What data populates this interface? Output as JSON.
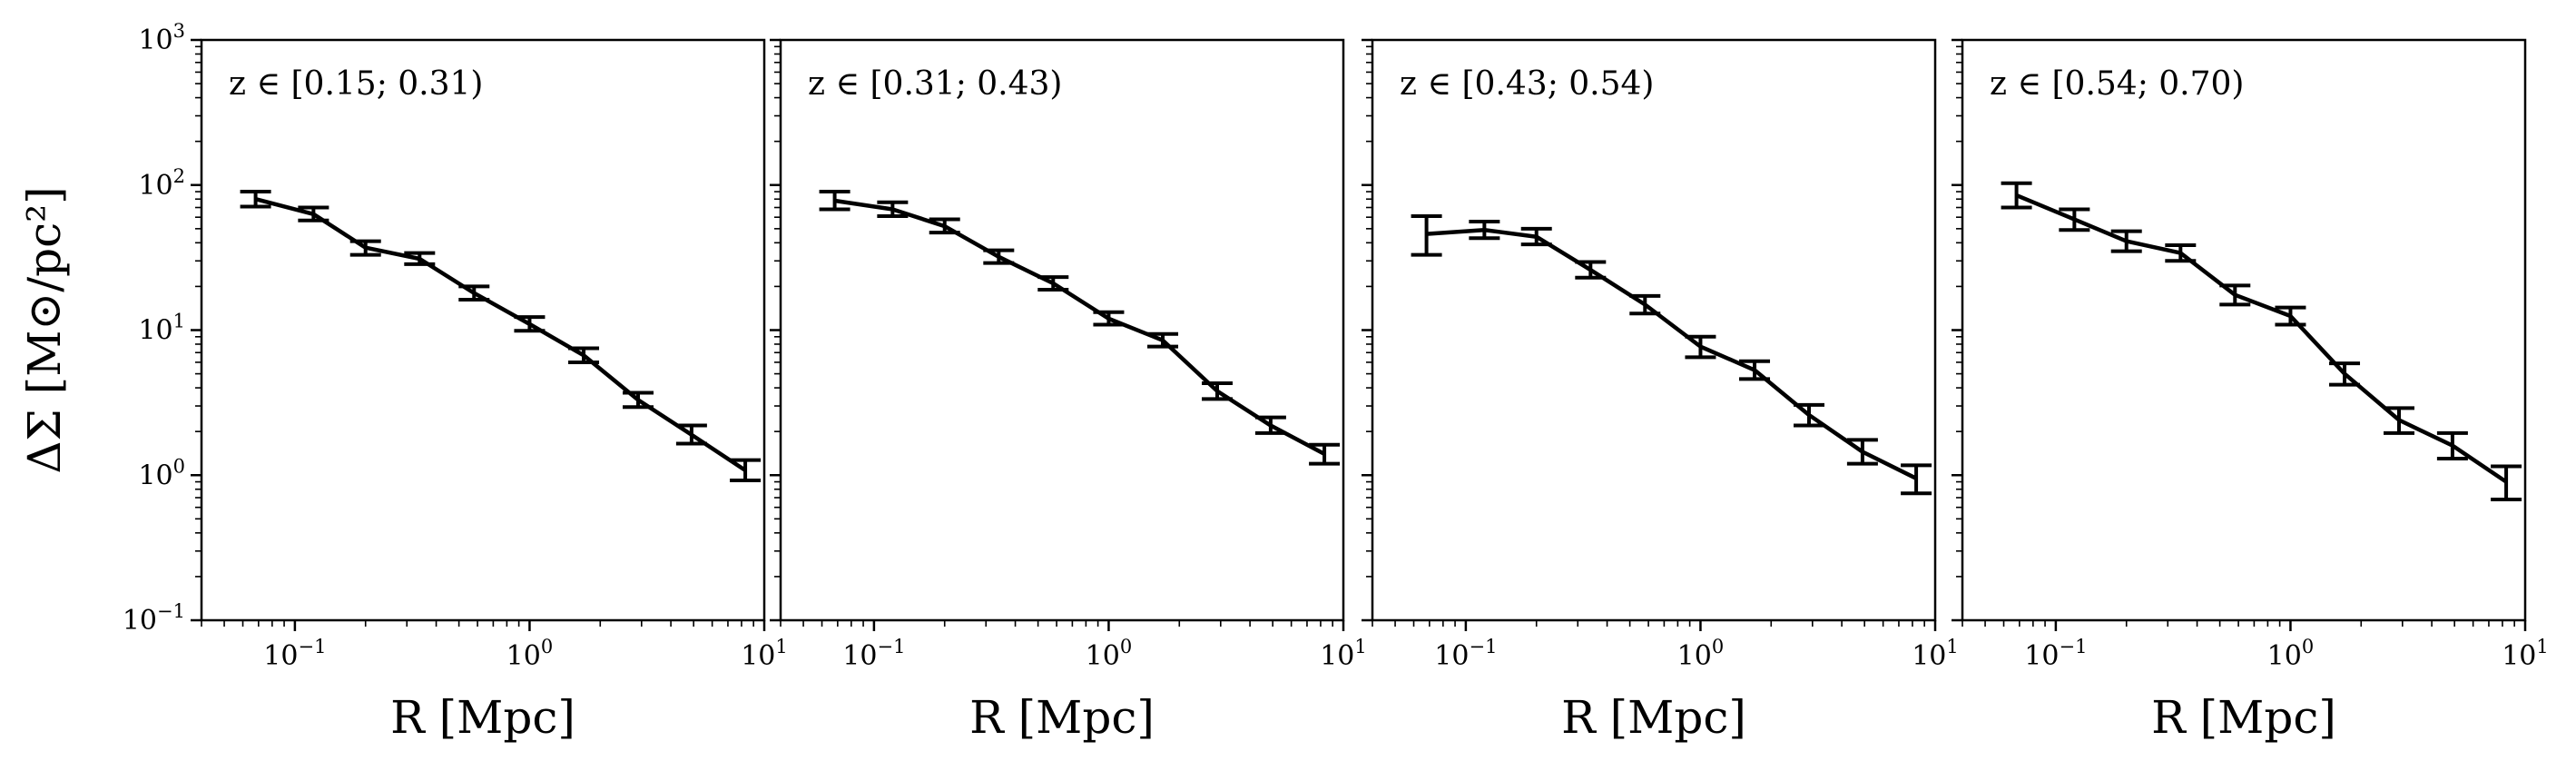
{
  "chart_data": [
    {
      "type": "line",
      "annotation": "z ∈ [0.15; 0.31)",
      "xlabel": "R [Mpc]",
      "ylabel": "ΔΣ [M⊙/pc²]",
      "xscale": "log",
      "yscale": "log",
      "xlim": [
        0.04,
        10
      ],
      "ylim": [
        0.1,
        1000
      ],
      "x": [
        0.068,
        0.12,
        0.2,
        0.34,
        0.58,
        1.0,
        1.7,
        2.9,
        4.9,
        8.3
      ],
      "y": [
        80,
        63,
        37,
        31,
        18,
        11,
        6.7,
        3.3,
        1.9,
        1.08
      ],
      "err_low": [
        9,
        6,
        4,
        2.5,
        1.8,
        1.1,
        0.7,
        0.35,
        0.25,
        0.16
      ],
      "err_high": [
        10,
        7,
        4,
        3,
        2,
        1.3,
        0.8,
        0.4,
        0.3,
        0.19
      ]
    },
    {
      "type": "line",
      "annotation": "z ∈ [0.31; 0.43)",
      "xlabel": "R [Mpc]",
      "ylabel": "",
      "xscale": "log",
      "yscale": "log",
      "xlim": [
        0.04,
        10
      ],
      "ylim": [
        0.1,
        1000
      ],
      "x": [
        0.068,
        0.12,
        0.2,
        0.34,
        0.58,
        1.0,
        1.7,
        2.9,
        4.9,
        8.3
      ],
      "y": [
        78,
        68,
        52,
        32,
        21,
        12,
        8.5,
        3.8,
        2.2,
        1.4
      ],
      "err_low": [
        10,
        7,
        5,
        3,
        2,
        1.1,
        0.8,
        0.45,
        0.25,
        0.2
      ],
      "err_high": [
        12,
        8,
        6,
        3.5,
        2.2,
        1.3,
        0.9,
        0.5,
        0.3,
        0.22
      ]
    },
    {
      "type": "line",
      "annotation": "z ∈ [0.43; 0.54)",
      "xlabel": "R [Mpc]",
      "ylabel": "",
      "xscale": "log",
      "yscale": "log",
      "xlim": [
        0.04,
        10
      ],
      "ylim": [
        0.1,
        1000
      ],
      "x": [
        0.068,
        0.12,
        0.2,
        0.34,
        0.58,
        1.0,
        1.7,
        2.9,
        4.9,
        8.3
      ],
      "y": [
        46,
        49,
        44,
        26,
        15,
        7.7,
        5.3,
        2.6,
        1.45,
        0.95
      ],
      "err_low": [
        13,
        6,
        5,
        3,
        2,
        1.2,
        0.7,
        0.4,
        0.25,
        0.2
      ],
      "err_high": [
        15,
        7,
        6,
        3.5,
        2.2,
        1.3,
        0.8,
        0.45,
        0.3,
        0.22
      ]
    },
    {
      "type": "line",
      "annotation": "z ∈ [0.54; 0.70)",
      "xlabel": "R [Mpc]",
      "ylabel": "",
      "xscale": "log",
      "yscale": "log",
      "xlim": [
        0.04,
        10
      ],
      "ylim": [
        0.1,
        1000
      ],
      "x": [
        0.068,
        0.12,
        0.2,
        0.34,
        0.58,
        1.0,
        1.7,
        2.9,
        4.9,
        8.3
      ],
      "y": [
        85,
        58,
        41,
        34,
        17.5,
        12.5,
        5.0,
        2.4,
        1.6,
        0.9
      ],
      "err_low": [
        15,
        9,
        6,
        4,
        2.5,
        1.6,
        0.8,
        0.45,
        0.3,
        0.22
      ],
      "err_high": [
        18,
        10,
        7,
        4.5,
        2.8,
        1.8,
        0.9,
        0.5,
        0.35,
        0.25
      ]
    }
  ],
  "ticks": {
    "x_labels": [
      {
        "base": "10",
        "exp": "−1"
      },
      {
        "base": "10",
        "exp": "0"
      },
      {
        "base": "10",
        "exp": "1"
      }
    ],
    "y_labels": [
      {
        "base": "10",
        "exp": "−1"
      },
      {
        "base": "10",
        "exp": "0"
      },
      {
        "base": "10",
        "exp": "1"
      },
      {
        "base": "10",
        "exp": "2"
      },
      {
        "base": "10",
        "exp": "3"
      }
    ]
  }
}
